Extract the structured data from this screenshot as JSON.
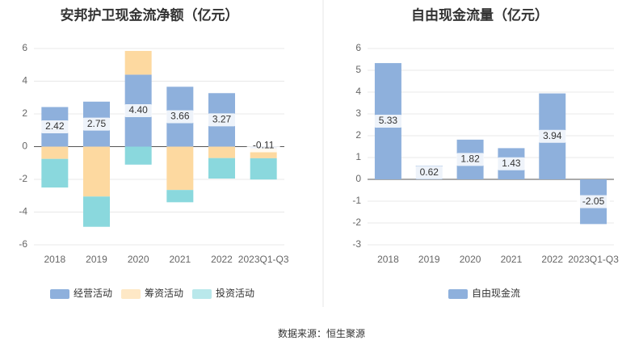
{
  "colors": {
    "operating": "#8eb0dc",
    "financing": "#fdd9a0",
    "investing": "#8ad8dd",
    "fcf": "#8eb0dc"
  },
  "chart_data": [
    {
      "type": "bar",
      "stacked": true,
      "title": "安邦护卫现金流净额（亿元）",
      "categories": [
        "2018",
        "2019",
        "2020",
        "2021",
        "2022",
        "2023Q1-Q3"
      ],
      "ylim": [
        -6,
        6
      ],
      "yticks": [
        -6,
        -4,
        -2,
        0,
        2,
        4,
        6
      ],
      "ytick_labels": [
        "-6",
        "-4",
        "-2",
        "0",
        "2",
        "4",
        "6"
      ],
      "series": [
        {
          "name": "经营活动",
          "color": "operating",
          "values": [
            2.42,
            2.75,
            4.4,
            3.66,
            3.27,
            -0.11
          ],
          "labels": [
            "2.42",
            "2.75",
            "4.40",
            "3.66",
            "3.27",
            "-0.11"
          ]
        },
        {
          "name": "筹资活动",
          "color": "financing",
          "values": [
            -0.75,
            -3.05,
            1.45,
            -2.65,
            -0.7,
            -0.6
          ]
        },
        {
          "name": "投资活动",
          "color": "investing",
          "values": [
            -1.75,
            -1.85,
            -1.1,
            -0.75,
            -1.25,
            -1.3
          ]
        }
      ],
      "legend_position": "bottom"
    },
    {
      "type": "bar",
      "title": "自由现金流量（亿元）",
      "categories": [
        "2018",
        "2019",
        "2020",
        "2021",
        "2022",
        "2023Q1-Q3"
      ],
      "ylim": [
        -3,
        6
      ],
      "yticks": [
        -3,
        -2,
        -1,
        0,
        1,
        2,
        3,
        4,
        5,
        6
      ],
      "ytick_labels": [
        "-3",
        "-2",
        "-1",
        "0",
        "1",
        "2",
        "3",
        "4",
        "5",
        "6"
      ],
      "series": [
        {
          "name": "自由现金流",
          "color": "fcf",
          "values": [
            5.33,
            0.62,
            1.82,
            1.43,
            3.94,
            -2.05
          ],
          "labels": [
            "5.33",
            "0.62",
            "1.82",
            "1.43",
            "3.94",
            "-2.05"
          ]
        }
      ],
      "legend_position": "bottom"
    }
  ],
  "source": "数据来源：恒生聚源"
}
